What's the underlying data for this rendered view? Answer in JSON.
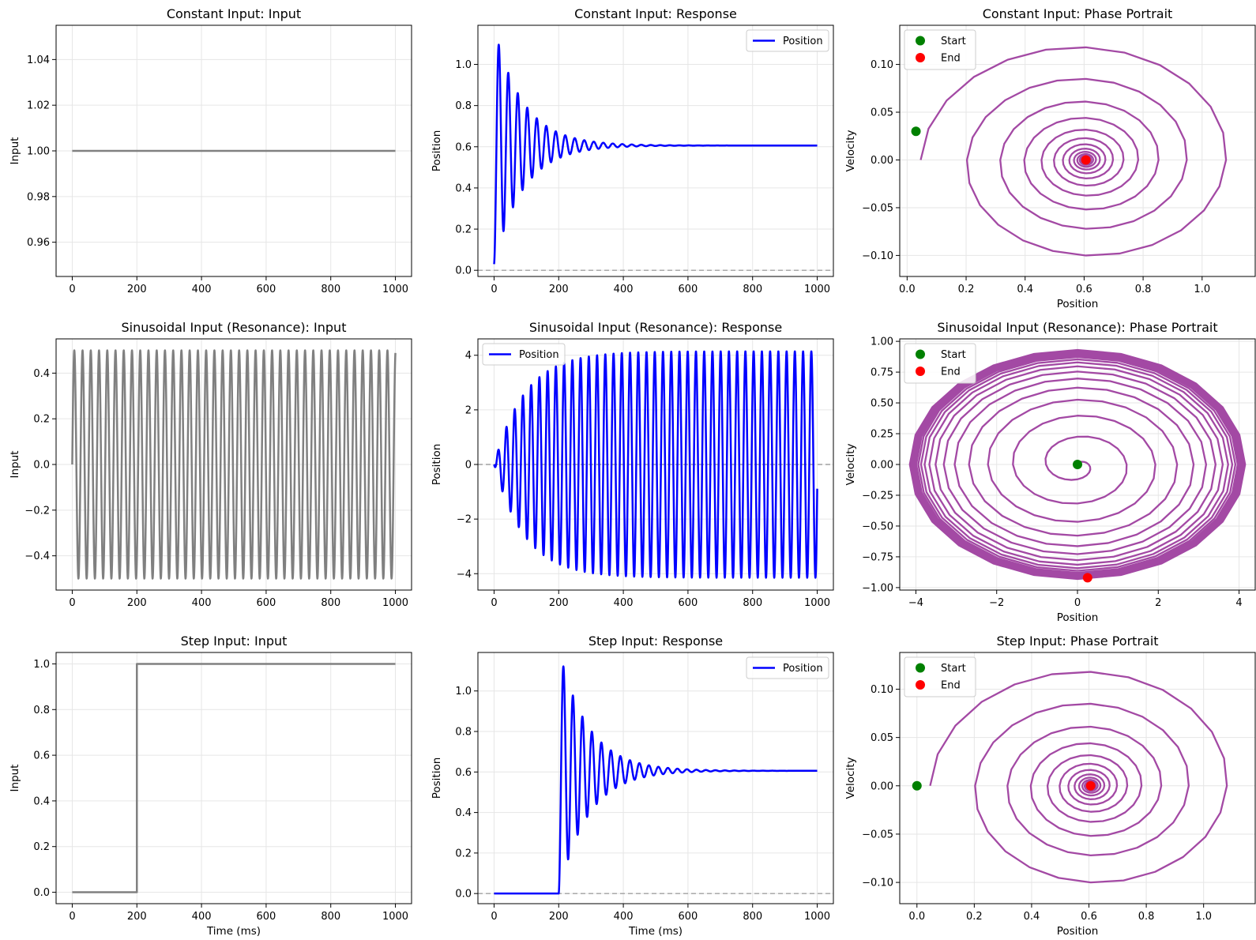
{
  "figure": {
    "colors": {
      "input": "#808080",
      "position": "#0000ff",
      "phase": "#a349a4",
      "start": "#008000",
      "end": "#ff0000",
      "grid": "#e6e6e6",
      "zero_line": "#a0a0a0"
    }
  },
  "chart_data": [
    {
      "type": "line",
      "title": "Constant Input: Input",
      "xlabel": "",
      "ylabel": "Input",
      "xlim": [
        -50,
        1050
      ],
      "ylim": [
        0.945,
        1.055
      ],
      "xticks": [
        0,
        200,
        400,
        600,
        800,
        1000
      ],
      "yticks": [
        0.96,
        0.98,
        1.0,
        1.02,
        1.04
      ],
      "ytick_labels": [
        "0.96",
        "0.98",
        "1.00",
        "1.02",
        "1.04"
      ],
      "grid": true,
      "series": [
        {
          "kind": "constant",
          "x": [
            0,
            1000
          ],
          "y": [
            1.0,
            1.0
          ]
        }
      ]
    },
    {
      "type": "line",
      "title": "Constant Input: Response",
      "xlabel": "",
      "ylabel": "Position",
      "xlim": [
        -50,
        1050
      ],
      "ylim": [
        -0.03,
        1.19
      ],
      "xticks": [
        0,
        200,
        400,
        600,
        800,
        1000
      ],
      "yticks": [
        0.0,
        0.2,
        0.4,
        0.6,
        0.8,
        1.0
      ],
      "ytick_labels": [
        "0.0",
        "0.2",
        "0.4",
        "0.6",
        "0.8",
        "1.0"
      ],
      "grid": true,
      "legend": {
        "entries": [
          "Position"
        ],
        "location": "upper right"
      },
      "zero_line": true,
      "series": [
        {
          "name": "Position",
          "kind": "damped",
          "t0": 0,
          "final": 0.606,
          "initial": 0.03,
          "period_ms": 29.4,
          "decay_ms": 90,
          "x_range": [
            0,
            1000
          ]
        }
      ]
    },
    {
      "type": "line",
      "title": "Constant Input: Phase Portrait",
      "xlabel": "Position",
      "ylabel": "Velocity",
      "xlim": [
        -0.025,
        1.18
      ],
      "ylim": [
        -0.122,
        0.141
      ],
      "xticks": [
        0.0,
        0.2,
        0.4,
        0.6,
        0.8,
        1.0
      ],
      "xtick_labels": [
        "0.0",
        "0.2",
        "0.4",
        "0.6",
        "0.8",
        "1.0"
      ],
      "yticks": [
        -0.1,
        -0.05,
        0.0,
        0.05,
        0.1
      ],
      "ytick_labels": [
        "−0.10",
        "−0.05",
        "0.00",
        "0.05",
        "0.10"
      ],
      "grid": true,
      "legend": {
        "entries": [
          "Start",
          "End"
        ],
        "location": "upper left"
      },
      "series": [
        {
          "kind": "spiral",
          "center": [
            0.606,
            0.0
          ],
          "x_amp": 0.56,
          "v_amp": 0.128,
          "turns": 17,
          "decay_per_turn": 0.72
        }
      ],
      "markers": {
        "start": [
          0.03,
          0.03
        ],
        "end": [
          0.606,
          0.0
        ]
      }
    },
    {
      "type": "line",
      "title": "Sinusoidal Input (Resonance): Input",
      "xlabel": "",
      "ylabel": "Input",
      "xlim": [
        -50,
        1050
      ],
      "ylim": [
        -0.55,
        0.55
      ],
      "xticks": [
        0,
        200,
        400,
        600,
        800,
        1000
      ],
      "yticks": [
        -0.4,
        -0.2,
        0.0,
        0.2,
        0.4
      ],
      "ytick_labels": [
        "−0.4",
        "−0.2",
        "0.0",
        "0.2",
        "0.4"
      ],
      "grid": true,
      "series": [
        {
          "kind": "sine",
          "amplitude": 0.5,
          "period_ms": 25.5,
          "x_range": [
            0,
            1000
          ]
        }
      ]
    },
    {
      "type": "line",
      "title": "Sinusoidal Input (Resonance): Response",
      "xlabel": "",
      "ylabel": "Position",
      "xlim": [
        -50,
        1050
      ],
      "ylim": [
        -4.6,
        4.6
      ],
      "xticks": [
        0,
        200,
        400,
        600,
        800,
        1000
      ],
      "yticks": [
        -4,
        -2,
        0,
        2,
        4
      ],
      "ytick_labels": [
        "−4",
        "−2",
        "0",
        "2",
        "4"
      ],
      "grid": true,
      "legend": {
        "entries": [
          "Position"
        ],
        "location": "upper left"
      },
      "zero_line": true,
      "series": [
        {
          "name": "Position",
          "kind": "resonance",
          "amplitude": 4.15,
          "period_ms": 25.5,
          "rise_ms": 95,
          "x_range": [
            0,
            1000
          ]
        }
      ]
    },
    {
      "type": "line",
      "title": "Sinusoidal Input (Resonance): Phase Portrait",
      "xlabel": "Position",
      "ylabel": "Velocity",
      "xlim": [
        -4.4,
        4.4
      ],
      "ylim": [
        -1.02,
        1.02
      ],
      "xticks": [
        -4,
        -2,
        0,
        2,
        4
      ],
      "xtick_labels": [
        "−4",
        "−2",
        "0",
        "2",
        "4"
      ],
      "yticks": [
        -1.0,
        -0.75,
        -0.5,
        -0.25,
        0.0,
        0.25,
        0.5,
        0.75,
        1.0
      ],
      "ytick_labels": [
        "−1.00",
        "−0.75",
        "−0.50",
        "−0.25",
        "0.00",
        "0.25",
        "0.50",
        "0.75",
        "1.00"
      ],
      "grid": true,
      "legend": {
        "entries": [
          "Start",
          "End"
        ],
        "location": "upper left"
      },
      "series": [
        {
          "kind": "growing_spiral",
          "x_amp": 4.15,
          "v_amp": 0.93,
          "turns": 39
        }
      ],
      "markers": {
        "start": [
          0.0,
          0.0
        ],
        "end": [
          0.25,
          -0.92
        ]
      }
    },
    {
      "type": "line",
      "title": "Step Input: Input",
      "xlabel": "Time (ms)",
      "ylabel": "Input",
      "xlim": [
        -50,
        1050
      ],
      "ylim": [
        -0.05,
        1.05
      ],
      "xticks": [
        0,
        200,
        400,
        600,
        800,
        1000
      ],
      "yticks": [
        0.0,
        0.2,
        0.4,
        0.6,
        0.8,
        1.0
      ],
      "ytick_labels": [
        "0.0",
        "0.2",
        "0.4",
        "0.6",
        "0.8",
        "1.0"
      ],
      "grid": true,
      "series": [
        {
          "kind": "step",
          "x": [
            0,
            200,
            200,
            1000
          ],
          "y": [
            0,
            0,
            1,
            1
          ]
        }
      ]
    },
    {
      "type": "line",
      "title": "Step Input: Response",
      "xlabel": "Time (ms)",
      "ylabel": "Position",
      "xlim": [
        -50,
        1050
      ],
      "ylim": [
        -0.05,
        1.19
      ],
      "xticks": [
        0,
        200,
        400,
        600,
        800,
        1000
      ],
      "yticks": [
        0.0,
        0.2,
        0.4,
        0.6,
        0.8,
        1.0
      ],
      "ytick_labels": [
        "0.0",
        "0.2",
        "0.4",
        "0.6",
        "0.8",
        "1.0"
      ],
      "grid": true,
      "legend": {
        "entries": [
          "Position"
        ],
        "location": "upper right"
      },
      "zero_line": true,
      "series": [
        {
          "name": "Position",
          "kind": "damped",
          "t0": 200,
          "final": 0.606,
          "initial": 0.0,
          "period_ms": 29.4,
          "decay_ms": 90,
          "x_range": [
            0,
            1000
          ]
        }
      ]
    },
    {
      "type": "line",
      "title": "Step Input: Phase Portrait",
      "xlabel": "Position",
      "ylabel": "Velocity",
      "xlim": [
        -0.06,
        1.18
      ],
      "ylim": [
        -0.122,
        0.138
      ],
      "xticks": [
        0.0,
        0.2,
        0.4,
        0.6,
        0.8,
        1.0
      ],
      "xtick_labels": [
        "0.0",
        "0.2",
        "0.4",
        "0.6",
        "0.8",
        "1.0"
      ],
      "yticks": [
        -0.1,
        -0.05,
        0.0,
        0.05,
        0.1
      ],
      "ytick_labels": [
        "−0.10",
        "−0.05",
        "0.00",
        "0.05",
        "0.10"
      ],
      "grid": true,
      "legend": {
        "entries": [
          "Start",
          "End"
        ],
        "location": "upper left"
      },
      "series": [
        {
          "kind": "spiral",
          "center": [
            0.606,
            0.0
          ],
          "x_amp": 0.56,
          "v_amp": 0.128,
          "turns": 17,
          "decay_per_turn": 0.72
        }
      ],
      "markers": {
        "start": [
          0.0,
          0.0
        ],
        "end": [
          0.606,
          0.0
        ]
      }
    }
  ]
}
